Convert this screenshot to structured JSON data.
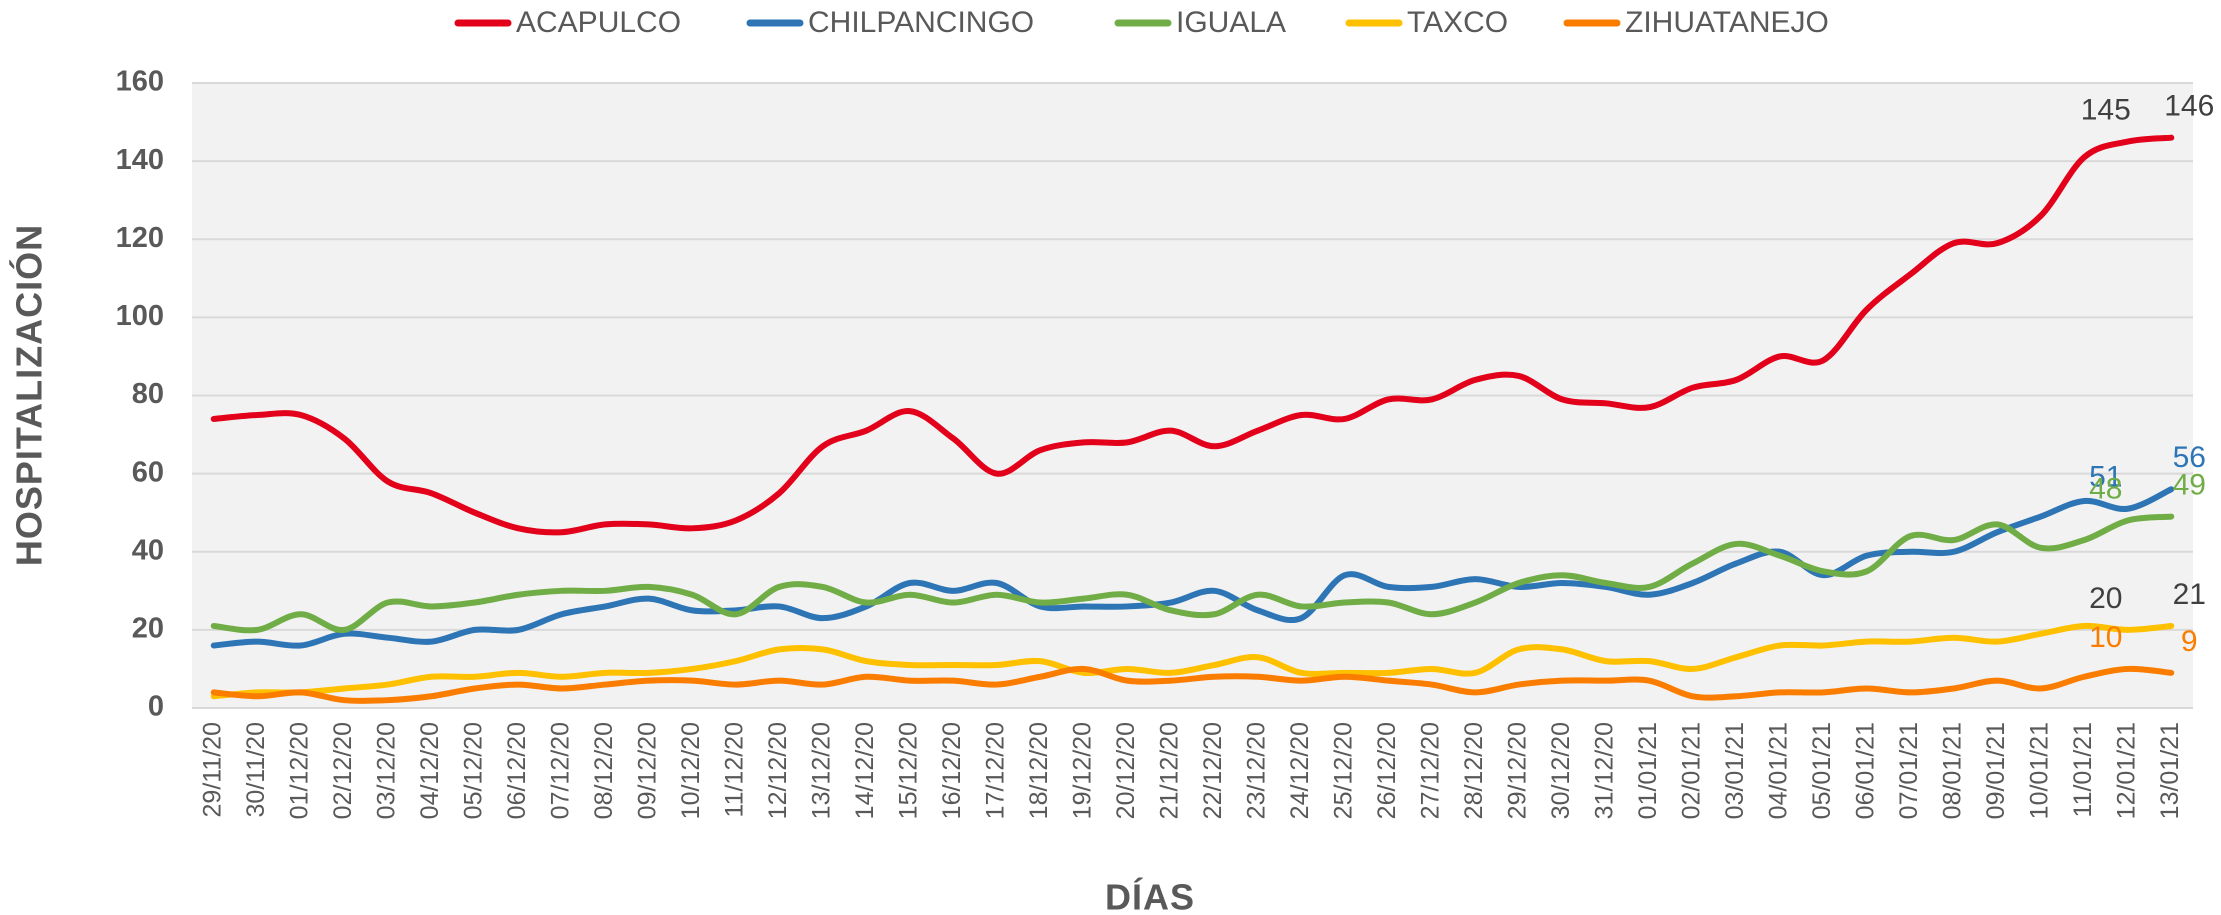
{
  "chart_data": {
    "type": "line",
    "x_label": "DÍAS",
    "y_label": "HOSPITALIZACIÓN",
    "categories": [
      "29/11/20",
      "30/11/20",
      "01/12/20",
      "02/12/20",
      "03/12/20",
      "04/12/20",
      "05/12/20",
      "06/12/20",
      "07/12/20",
      "08/12/20",
      "09/12/20",
      "10/12/20",
      "11/12/20",
      "12/12/20",
      "13/12/20",
      "14/12/20",
      "15/12/20",
      "16/12/20",
      "17/12/20",
      "18/12/20",
      "19/12/20",
      "20/12/20",
      "21/12/20",
      "22/12/20",
      "23/12/20",
      "24/12/20",
      "25/12/20",
      "26/12/20",
      "27/12/20",
      "28/12/20",
      "29/12/20",
      "30/12/20",
      "31/12/20",
      "01/01/21",
      "02/01/21",
      "03/01/21",
      "04/01/21",
      "05/01/21",
      "06/01/21",
      "07/01/21",
      "08/01/21",
      "09/01/21",
      "10/01/21",
      "11/01/21",
      "12/01/21",
      "13/01/21"
    ],
    "series": [
      {
        "name": "ACAPULCO",
        "color": "#e2001a",
        "label_color": "#404040",
        "values": [
          74,
          75,
          75,
          69,
          58,
          55,
          50,
          46,
          45,
          47,
          47,
          46,
          48,
          55,
          67,
          71,
          76,
          69,
          60,
          66,
          68,
          68,
          71,
          67,
          71,
          75,
          74,
          79,
          79,
          84,
          85,
          79,
          78,
          77,
          82,
          84,
          90,
          89,
          102,
          111,
          119,
          119,
          126,
          141,
          145,
          146
        ]
      },
      {
        "name": "CHILPANCINGO",
        "color": "#2e75b6",
        "label_color": "#2e75b6",
        "values": [
          16,
          17,
          16,
          19,
          18,
          17,
          20,
          20,
          24,
          26,
          28,
          25,
          25,
          26,
          23,
          26,
          32,
          30,
          32,
          26,
          26,
          26,
          27,
          30,
          25,
          23,
          34,
          31,
          31,
          33,
          31,
          32,
          31,
          29,
          32,
          37,
          40,
          34,
          39,
          40,
          40,
          45,
          49,
          53,
          51,
          56
        ]
      },
      {
        "name": "IGUALA",
        "color": "#70ad47",
        "label_color": "#70ad47",
        "values": [
          21,
          20,
          24,
          20,
          27,
          26,
          27,
          29,
          30,
          30,
          31,
          29,
          24,
          31,
          31,
          27,
          29,
          27,
          29,
          27,
          28,
          29,
          25,
          24,
          29,
          26,
          27,
          27,
          24,
          27,
          32,
          34,
          32,
          31,
          37,
          42,
          39,
          35,
          35,
          44,
          43,
          47,
          41,
          43,
          48,
          49
        ]
      },
      {
        "name": "TAXCO",
        "color": "#ffc000",
        "label_color": "#404040",
        "values": [
          3,
          4,
          4,
          5,
          6,
          8,
          8,
          9,
          8,
          9,
          9,
          10,
          12,
          15,
          15,
          12,
          11,
          11,
          11,
          12,
          9,
          10,
          9,
          11,
          13,
          9,
          9,
          9,
          10,
          9,
          15,
          15,
          12,
          12,
          10,
          13,
          16,
          16,
          17,
          17,
          18,
          17,
          19,
          21,
          20,
          21
        ]
      },
      {
        "name": "ZIHUATANEJO",
        "color": "#fa7d00",
        "label_color": "#fa7d00",
        "values": [
          4,
          3,
          4,
          2,
          2,
          3,
          5,
          6,
          5,
          6,
          7,
          7,
          6,
          7,
          6,
          8,
          7,
          7,
          6,
          8,
          10,
          7,
          7,
          8,
          8,
          7,
          8,
          7,
          6,
          4,
          6,
          7,
          7,
          7,
          3,
          3,
          4,
          4,
          5,
          4,
          5,
          7,
          5,
          8,
          10,
          9
        ]
      }
    ],
    "ylim": [
      0,
      160
    ],
    "yticks": [
      0,
      20,
      40,
      60,
      80,
      100,
      120,
      140,
      160
    ],
    "grid": true,
    "legend": "top",
    "plot_background": "#f2f2f2"
  }
}
